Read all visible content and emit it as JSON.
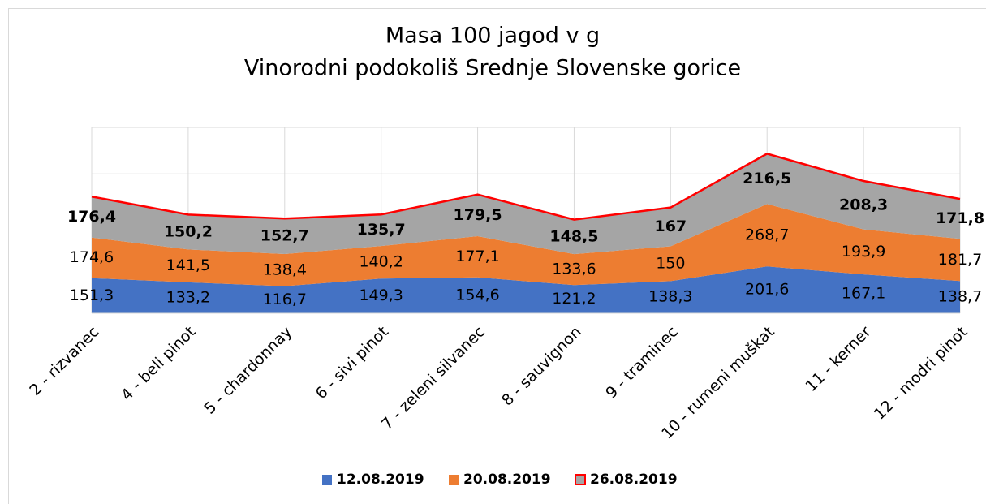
{
  "chart_data": {
    "type": "stacked_area",
    "title": "Masa 100 jagod v g",
    "subtitle": "Vinorodni podokoliš Srednje Slovenske gorice",
    "categories": [
      "2 - rizvanec",
      "4 - beli pinot",
      "5 - chardonnay",
      "6 - sivi pinot",
      "7 - zeleni silvanec",
      "8 - sauvignon",
      "9 - traminec",
      "10 - rumeni muškat",
      "11 - kerner",
      "12 - modri pinot"
    ],
    "series": [
      {
        "name": "12.08.2019",
        "color": "#4472c4",
        "values": [
          151.3,
          133.2,
          116.7,
          149.3,
          154.6,
          121.2,
          138.3,
          201.6,
          167.1,
          138.7
        ],
        "value_labels": [
          "151,3",
          "133,2",
          "116,7",
          "149,3",
          "154,6",
          "121,2",
          "138,3",
          "201,6",
          "167,1",
          "138,7"
        ]
      },
      {
        "name": "20.08.2019",
        "color": "#ed7d31",
        "values": [
          174.6,
          141.5,
          138.4,
          140.2,
          177.1,
          133.6,
          150,
          268.7,
          193.9,
          181.7
        ],
        "value_labels": [
          "174,6",
          "141,5",
          "138,4",
          "140,2",
          "177,1",
          "133,6",
          "150",
          "268,7",
          "193,9",
          "181,7"
        ]
      },
      {
        "name": "26.08.2019",
        "color": "#a5a5a5",
        "line_color": "#ff0000",
        "values": [
          176.4,
          150.2,
          152.7,
          135.7,
          179.5,
          148.5,
          167,
          216.5,
          208.3,
          171.8
        ],
        "value_labels": [
          "176,4",
          "150,2",
          "152,7",
          "135,7",
          "179,5",
          "148,5",
          "167",
          "216,5",
          "208,3",
          "171,8"
        ]
      }
    ],
    "ylim": [
      0,
      800
    ],
    "yticks": [
      0,
      200,
      400,
      600,
      800
    ],
    "grid": true,
    "legend": "bottom"
  }
}
